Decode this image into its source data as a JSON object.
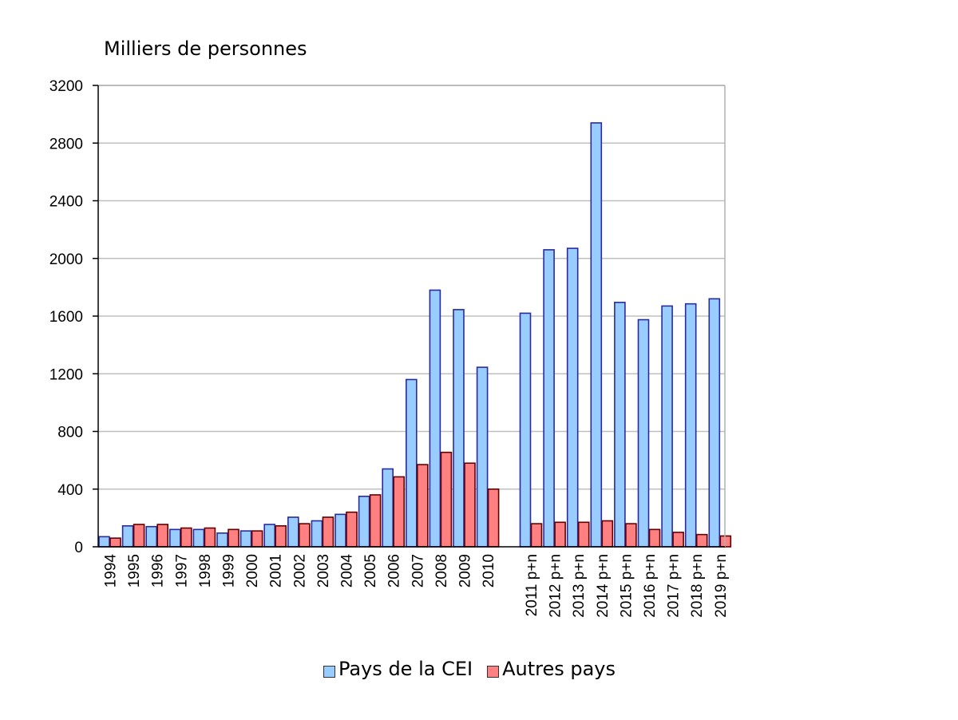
{
  "chart_data": {
    "type": "bar",
    "title": "",
    "ylabel": "Milliers de personnes",
    "xlabel": "",
    "ylim": [
      0,
      3200
    ],
    "yticks": [
      0,
      400,
      800,
      1200,
      1600,
      2000,
      2400,
      2800,
      3200
    ],
    "grid": true,
    "legend_position": "bottom",
    "categories": [
      "1994",
      "1995",
      "1996",
      "1997",
      "1998",
      "1999",
      "2000",
      "2001",
      "2002",
      "2003",
      "2004",
      "2005",
      "2006",
      "2007",
      "2008",
      "2009",
      "2010",
      "2011 p+n",
      "2012 p+n",
      "2013 p+n",
      "2014 p+n",
      "2015 p+n",
      "2016 p+n",
      "2017 p+n",
      "2018 p+n",
      "2019 p+n"
    ],
    "series": [
      {
        "name": "Pays de la CEI",
        "color": "#99ccff",
        "values": [
          70,
          145,
          140,
          120,
          120,
          95,
          110,
          155,
          205,
          180,
          225,
          350,
          540,
          1160,
          1780,
          1645,
          1245,
          1620,
          2060,
          2070,
          2940,
          1695,
          1575,
          1670,
          1685,
          1720
        ]
      },
      {
        "name": "Autres pays",
        "color": "#ff8080",
        "values": [
          60,
          155,
          155,
          130,
          130,
          120,
          110,
          145,
          160,
          205,
          240,
          360,
          485,
          570,
          655,
          580,
          400,
          160,
          170,
          170,
          180,
          160,
          120,
          100,
          85,
          75
        ]
      }
    ]
  },
  "legend": {
    "item1": "Pays de la CEI",
    "item2": "Autres pays"
  }
}
